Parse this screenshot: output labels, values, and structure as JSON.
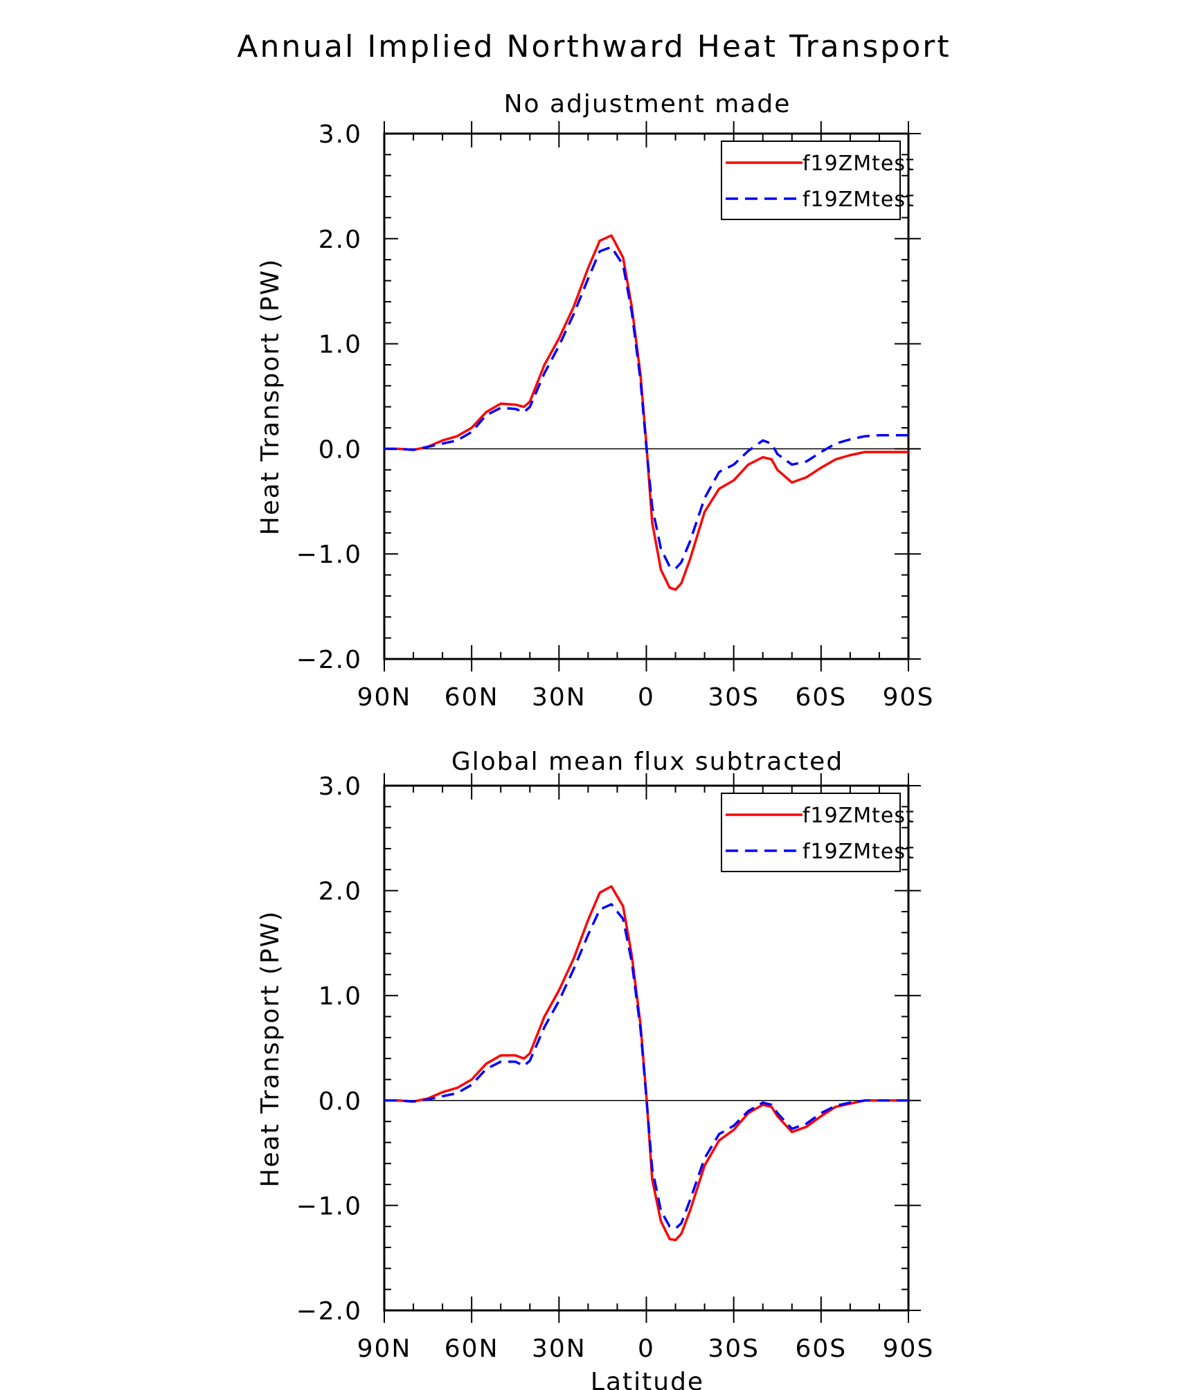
{
  "figure_title": "Annual Implied Northward Heat Transport",
  "chart_data": [
    {
      "type": "line",
      "title": "No adjustment made",
      "xlabel": "",
      "ylabel": "Heat Transport (PW)",
      "xlim": [
        90,
        -90
      ],
      "ylim": [
        -2.0,
        3.0
      ],
      "x_ticks": [
        90,
        60,
        30,
        0,
        -30,
        -60,
        -90
      ],
      "x_tick_labels": [
        "90N",
        "60N",
        "30N",
        "0",
        "30S",
        "60S",
        "90S"
      ],
      "y_ticks": [
        3.0,
        2.0,
        1.0,
        0.0,
        -1.0,
        -2.0
      ],
      "y_tick_labels": [
        "3.0",
        "2.0",
        "1.0",
        "0.0",
        "−1.0",
        "−2.0"
      ],
      "legend_position": "top-right",
      "zero_line": true,
      "x": [
        90,
        85,
        80,
        75,
        70,
        65,
        60,
        55,
        50,
        45,
        42,
        40,
        35,
        30,
        25,
        20,
        16,
        12,
        8,
        5,
        2,
        0,
        -2,
        -5,
        -8,
        -10,
        -12,
        -15,
        -20,
        -25,
        -30,
        -35,
        -40,
        -43,
        -45,
        -50,
        -55,
        -60,
        -65,
        -70,
        -75,
        -80,
        -85,
        -90
      ],
      "series": [
        {
          "name": "f19ZMtest",
          "color": "#ff0000",
          "dash": "solid",
          "values": [
            0.0,
            0.0,
            -0.01,
            0.02,
            0.08,
            0.12,
            0.2,
            0.35,
            0.43,
            0.42,
            0.4,
            0.45,
            0.8,
            1.05,
            1.35,
            1.72,
            1.98,
            2.03,
            1.82,
            1.35,
            0.7,
            0.05,
            -0.7,
            -1.15,
            -1.32,
            -1.34,
            -1.28,
            -1.05,
            -0.6,
            -0.38,
            -0.3,
            -0.15,
            -0.08,
            -0.1,
            -0.2,
            -0.32,
            -0.27,
            -0.18,
            -0.1,
            -0.06,
            -0.03,
            -0.03,
            -0.03,
            -0.03
          ]
        },
        {
          "name": "f19ZMtest",
          "color": "#0000ff",
          "dash": "dashed",
          "values": [
            0.0,
            0.0,
            -0.01,
            0.02,
            0.05,
            0.08,
            0.16,
            0.32,
            0.39,
            0.38,
            0.35,
            0.4,
            0.72,
            0.98,
            1.28,
            1.62,
            1.88,
            1.92,
            1.75,
            1.3,
            0.65,
            0.02,
            -0.55,
            -0.95,
            -1.12,
            -1.14,
            -1.08,
            -0.88,
            -0.47,
            -0.22,
            -0.15,
            -0.02,
            0.08,
            0.05,
            -0.05,
            -0.15,
            -0.12,
            -0.03,
            0.05,
            0.09,
            0.12,
            0.13,
            0.13,
            0.13
          ]
        }
      ]
    },
    {
      "type": "line",
      "title": "Global mean flux subtracted",
      "xlabel": "Latitude",
      "ylabel": "Heat Transport (PW)",
      "xlim": [
        90,
        -90
      ],
      "ylim": [
        -2.0,
        3.0
      ],
      "x_ticks": [
        90,
        60,
        30,
        0,
        -30,
        -60,
        -90
      ],
      "x_tick_labels": [
        "90N",
        "60N",
        "30N",
        "0",
        "30S",
        "60S",
        "90S"
      ],
      "y_ticks": [
        3.0,
        2.0,
        1.0,
        0.0,
        -1.0,
        -2.0
      ],
      "y_tick_labels": [
        "3.0",
        "2.0",
        "1.0",
        "0.0",
        "−1.0",
        "−2.0"
      ],
      "legend_position": "top-right",
      "zero_line": true,
      "x": [
        90,
        85,
        80,
        75,
        70,
        65,
        60,
        55,
        50,
        45,
        42,
        40,
        35,
        30,
        25,
        20,
        16,
        12,
        8,
        5,
        2,
        0,
        -2,
        -5,
        -8,
        -10,
        -12,
        -15,
        -20,
        -25,
        -30,
        -35,
        -40,
        -43,
        -45,
        -50,
        -55,
        -60,
        -65,
        -70,
        -75,
        -80,
        -85,
        -90
      ],
      "series": [
        {
          "name": "f19ZMtest",
          "color": "#ff0000",
          "dash": "solid",
          "values": [
            0.0,
            0.0,
            -0.01,
            0.02,
            0.08,
            0.12,
            0.2,
            0.35,
            0.43,
            0.43,
            0.4,
            0.45,
            0.8,
            1.05,
            1.35,
            1.72,
            1.98,
            2.04,
            1.85,
            1.38,
            0.72,
            0.05,
            -0.75,
            -1.15,
            -1.32,
            -1.33,
            -1.27,
            -1.05,
            -0.62,
            -0.38,
            -0.28,
            -0.12,
            -0.04,
            -0.06,
            -0.15,
            -0.3,
            -0.25,
            -0.15,
            -0.06,
            -0.03,
            0.0,
            0.0,
            0.0,
            0.0
          ]
        },
        {
          "name": "f19ZMtest",
          "color": "#0000ff",
          "dash": "dashed",
          "values": [
            0.0,
            0.0,
            -0.01,
            0.01,
            0.04,
            0.07,
            0.15,
            0.3,
            0.37,
            0.37,
            0.33,
            0.38,
            0.7,
            0.95,
            1.25,
            1.58,
            1.82,
            1.87,
            1.73,
            1.32,
            0.68,
            0.03,
            -0.65,
            -1.05,
            -1.2,
            -1.22,
            -1.17,
            -0.95,
            -0.55,
            -0.32,
            -0.24,
            -0.1,
            -0.02,
            -0.04,
            -0.12,
            -0.27,
            -0.22,
            -0.12,
            -0.05,
            -0.02,
            0.0,
            0.0,
            0.0,
            0.0
          ]
        }
      ]
    }
  ]
}
